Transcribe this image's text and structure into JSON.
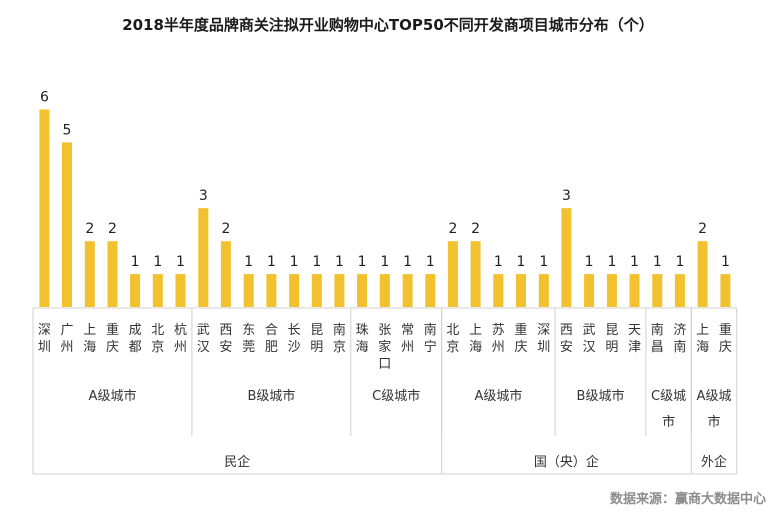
{
  "chart_data": {
    "type": "bar",
    "title": "2018半年度品牌商关注拟开业购物中心TOP50不同开发商项目城市分布（个）",
    "bar_color": "#F2C12E",
    "ylim": [
      0,
      6.5
    ],
    "categories": [
      "深圳",
      "广州",
      "上海",
      "重庆",
      "成都",
      "北京",
      "杭州",
      "武汉",
      "西安",
      "东莞",
      "合肥",
      "长沙",
      "昆明",
      "南京",
      "珠海",
      "张家口",
      "常州",
      "南宁",
      "北京",
      "上海",
      "苏州",
      "重庆",
      "深圳",
      "西安",
      "武汉",
      "昆明",
      "天津",
      "南昌",
      "济南",
      "上海",
      "重庆"
    ],
    "values": [
      6,
      5,
      2,
      2,
      1,
      1,
      1,
      3,
      2,
      1,
      1,
      1,
      1,
      1,
      1,
      1,
      1,
      1,
      2,
      2,
      1,
      1,
      1,
      3,
      1,
      1,
      1,
      1,
      1,
      2,
      1
    ],
    "tier_groups": [
      {
        "label": "A级城市",
        "start": 0,
        "end": 6
      },
      {
        "label": "B级城市",
        "start": 7,
        "end": 13
      },
      {
        "label": "C级城市",
        "start": 14,
        "end": 17
      },
      {
        "label": "A级城市",
        "start": 18,
        "end": 22
      },
      {
        "label": "B级城市",
        "start": 23,
        "end": 26
      },
      {
        "label": "C级城市",
        "start": 27,
        "end": 28
      },
      {
        "label": "A级城市",
        "start": 29,
        "end": 30
      }
    ],
    "developer_groups": [
      {
        "label": "民企",
        "start": 0,
        "end": 17
      },
      {
        "label": "国（央）企",
        "start": 18,
        "end": 28
      },
      {
        "label": "外企",
        "start": 29,
        "end": 30
      }
    ]
  },
  "source_text": "数据来源：赢商大数据中心"
}
